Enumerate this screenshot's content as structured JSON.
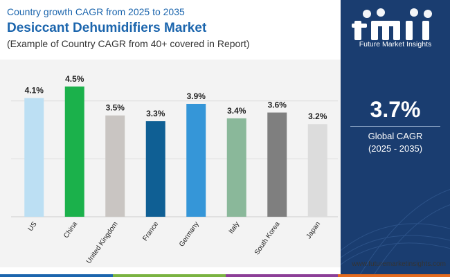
{
  "header": {
    "top_line": "Country growth CAGR from 2025 to 2035",
    "title": "Desiccant Dehumidifiers Market",
    "note": "(Example of Country CAGR from 40+ covered in Report)"
  },
  "sidebar": {
    "logo_text": "Future Market Insights",
    "cagr_value": "3.7%",
    "cagr_label_line1": "Global CAGR",
    "cagr_label_line2": "(2025 - 2035)"
  },
  "footer": {
    "url": "www.futuremarketinsights.com"
  },
  "colors": {
    "title_blue": "#1b65ad",
    "sidebar_navy": "#1a3d70",
    "bottom_bar": [
      "#1b65ad",
      "#7ab341",
      "#8c3f97",
      "#e36b1f"
    ]
  },
  "chart_data": {
    "type": "bar",
    "categories": [
      "US",
      "China",
      "United Kingdom",
      "France",
      "Germany",
      "Italy",
      "South Korea",
      "Japan"
    ],
    "values": [
      4.1,
      4.5,
      3.5,
      3.3,
      3.9,
      3.4,
      3.6,
      3.2
    ],
    "data_labels": [
      "4.1%",
      "4.5%",
      "3.5%",
      "3.3%",
      "3.9%",
      "3.4%",
      "3.6%",
      "3.2%"
    ],
    "bar_colors": [
      "#bcdff3",
      "#1bb14b",
      "#c9c5c2",
      "#0f5f94",
      "#3596d8",
      "#8ab89a",
      "#7f7f7f",
      "#dcdcdc"
    ],
    "ylim": [
      0,
      5.0
    ],
    "grid": true,
    "gridlines": [
      2,
      4
    ],
    "title": "",
    "xlabel": "",
    "ylabel": "",
    "x_tick_rotation": "diagonal"
  }
}
